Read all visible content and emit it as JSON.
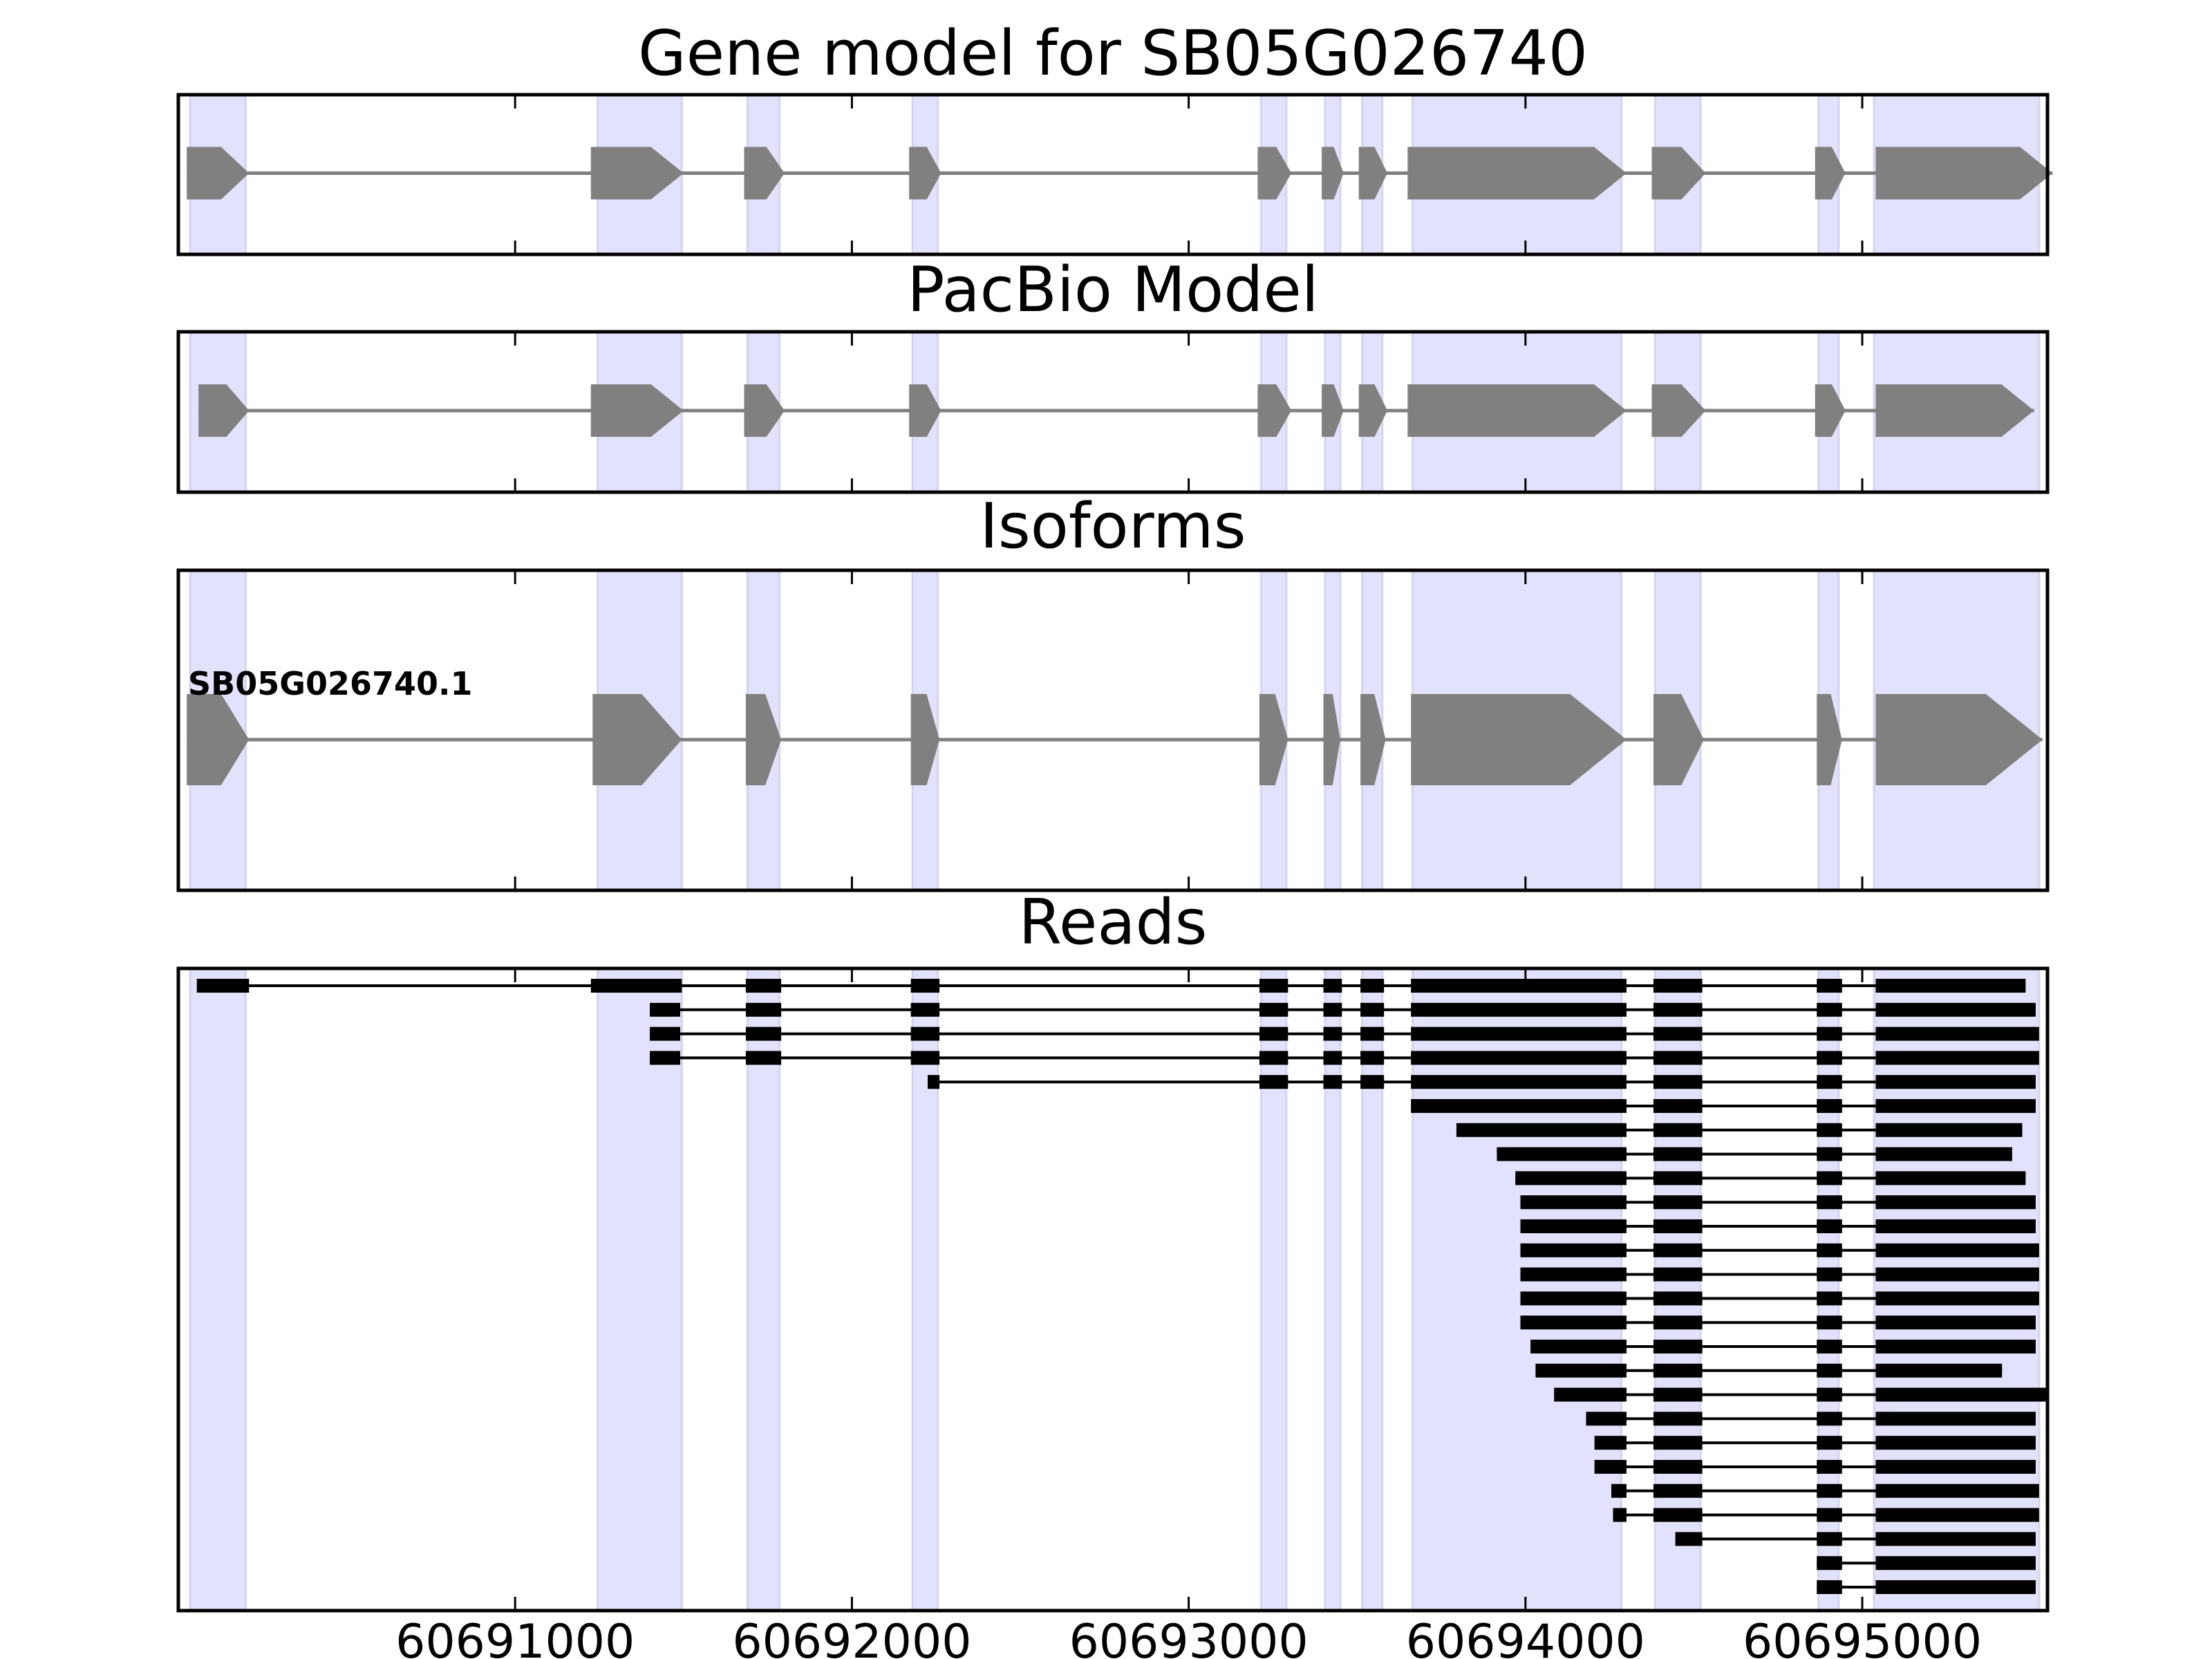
{
  "chart_data": {
    "type": "gene-model",
    "xlim": [
      60690000,
      60695550
    ],
    "x_ticks": [
      60691000,
      60692000,
      60693000,
      60694000,
      60695000
    ],
    "x_tick_labels": [
      "60691000",
      "60692000",
      "60693000",
      "60694000",
      "60695000"
    ],
    "colors": {
      "exon_model": "#808080",
      "intron_model": "#808080",
      "read": "#000000",
      "highlight": "#e2e2fc",
      "frame": "#000000"
    },
    "highlight_regions": [
      [
        60690035,
        60690200
      ],
      [
        60691245,
        60691495
      ],
      [
        60691690,
        60691785
      ],
      [
        60692180,
        60692255
      ],
      [
        60693215,
        60693290
      ],
      [
        60693405,
        60693450
      ],
      [
        60693515,
        60693575
      ],
      [
        60693665,
        60694285
      ],
      [
        60694385,
        60694520
      ],
      [
        60694870,
        60694930
      ],
      [
        60695035,
        60695525
      ]
    ],
    "panels": [
      {
        "title": "Gene model for SB05G026740",
        "transcripts": [
          {
            "label": "",
            "exons": [
              [
                60690025,
                60690210
              ],
              [
                60691225,
                60691500
              ],
              [
                60691680,
                60691800
              ],
              [
                60692170,
                60692265
              ],
              [
                60693205,
                60693305
              ],
              [
                60693395,
                60693460
              ],
              [
                60693505,
                60693590
              ],
              [
                60693650,
                60694300
              ],
              [
                60694375,
                60694535
              ],
              [
                60694860,
                60694950
              ],
              [
                60695040,
                60695565
              ]
            ]
          }
        ]
      },
      {
        "title": "PacBio Model",
        "transcripts": [
          {
            "label": "",
            "exons": [
              [
                60690060,
                60690210
              ],
              [
                60691225,
                60691500
              ],
              [
                60691680,
                60691800
              ],
              [
                60692170,
                60692265
              ],
              [
                60693205,
                60693305
              ],
              [
                60693395,
                60693460
              ],
              [
                60693505,
                60693590
              ],
              [
                60693650,
                60694300
              ],
              [
                60694375,
                60694535
              ],
              [
                60694860,
                60694950
              ],
              [
                60695040,
                60695510
              ]
            ]
          }
        ]
      },
      {
        "title": "Isoforms",
        "transcripts": [
          {
            "label": "SB05G026740.1",
            "exons": [
              [
                60690025,
                60690210
              ],
              [
                60691230,
                60691495
              ],
              [
                60691685,
                60691790
              ],
              [
                60692175,
                60692260
              ],
              [
                60693210,
                60693295
              ],
              [
                60693400,
                60693450
              ],
              [
                60693510,
                60693585
              ],
              [
                60693660,
                60694300
              ],
              [
                60694380,
                60694530
              ],
              [
                60694865,
                60694940
              ],
              [
                60695040,
                60695535
              ]
            ]
          }
        ]
      },
      {
        "title": "Reads",
        "reads": [
          [
            [
              60690055,
              60690210
            ],
            [
              60691225,
              60691495
            ],
            [
              60691685,
              60691790
            ],
            [
              60692175,
              60692260
            ],
            [
              60693210,
              60693295
            ],
            [
              60693400,
              60693455
            ],
            [
              60693510,
              60693580
            ],
            [
              60693660,
              60694300
            ],
            [
              60694380,
              60694525
            ],
            [
              60694865,
              60694940
            ],
            [
              60695040,
              60695485
            ]
          ],
          [
            [
              60691400,
              60691490
            ],
            [
              60691685,
              60691790
            ],
            [
              60692175,
              60692260
            ],
            [
              60693210,
              60693295
            ],
            [
              60693400,
              60693455
            ],
            [
              60693510,
              60693580
            ],
            [
              60693660,
              60694300
            ],
            [
              60694380,
              60694525
            ],
            [
              60694865,
              60694940
            ],
            [
              60695040,
              60695515
            ]
          ],
          [
            [
              60691400,
              60691490
            ],
            [
              60691685,
              60691790
            ],
            [
              60692175,
              60692260
            ],
            [
              60693210,
              60693295
            ],
            [
              60693400,
              60693455
            ],
            [
              60693510,
              60693580
            ],
            [
              60693660,
              60694300
            ],
            [
              60694380,
              60694525
            ],
            [
              60694865,
              60694940
            ],
            [
              60695040,
              60695525
            ]
          ],
          [
            [
              60691400,
              60691490
            ],
            [
              60691685,
              60691790
            ],
            [
              60692175,
              60692260
            ],
            [
              60693210,
              60693295
            ],
            [
              60693400,
              60693455
            ],
            [
              60693510,
              60693580
            ],
            [
              60693660,
              60694300
            ],
            [
              60694380,
              60694525
            ],
            [
              60694865,
              60694940
            ],
            [
              60695040,
              60695525
            ]
          ],
          [
            [
              60692225,
              60692260
            ],
            [
              60693210,
              60693295
            ],
            [
              60693400,
              60693455
            ],
            [
              60693510,
              60693580
            ],
            [
              60693660,
              60694300
            ],
            [
              60694380,
              60694525
            ],
            [
              60694865,
              60694940
            ],
            [
              60695040,
              60695515
            ]
          ],
          [
            [
              60693660,
              60694300
            ],
            [
              60694380,
              60694525
            ],
            [
              60694865,
              60694940
            ],
            [
              60695040,
              60695515
            ]
          ],
          [
            [
              60693795,
              60694300
            ],
            [
              60694380,
              60694525
            ],
            [
              60694865,
              60694940
            ],
            [
              60695040,
              60695475
            ]
          ],
          [
            [
              60693915,
              60694300
            ],
            [
              60694380,
              60694525
            ],
            [
              60694865,
              60694940
            ],
            [
              60695040,
              60695445
            ]
          ],
          [
            [
              60693970,
              60694300
            ],
            [
              60694380,
              60694525
            ],
            [
              60694865,
              60694940
            ],
            [
              60695040,
              60695485
            ]
          ],
          [
            [
              60693985,
              60694300
            ],
            [
              60694380,
              60694525
            ],
            [
              60694865,
              60694940
            ],
            [
              60695040,
              60695515
            ]
          ],
          [
            [
              60693985,
              60694300
            ],
            [
              60694380,
              60694525
            ],
            [
              60694865,
              60694940
            ],
            [
              60695040,
              60695515
            ]
          ],
          [
            [
              60693985,
              60694300
            ],
            [
              60694380,
              60694525
            ],
            [
              60694865,
              60694940
            ],
            [
              60695040,
              60695525
            ]
          ],
          [
            [
              60693985,
              60694300
            ],
            [
              60694380,
              60694525
            ],
            [
              60694865,
              60694940
            ],
            [
              60695040,
              60695525
            ]
          ],
          [
            [
              60693985,
              60694300
            ],
            [
              60694380,
              60694525
            ],
            [
              60694865,
              60694940
            ],
            [
              60695040,
              60695525
            ]
          ],
          [
            [
              60693985,
              60694300
            ],
            [
              60694380,
              60694525
            ],
            [
              60694865,
              60694940
            ],
            [
              60695040,
              60695515
            ]
          ],
          [
            [
              60694015,
              60694300
            ],
            [
              60694380,
              60694525
            ],
            [
              60694865,
              60694940
            ],
            [
              60695040,
              60695515
            ]
          ],
          [
            [
              60694030,
              60694300
            ],
            [
              60694380,
              60694525
            ],
            [
              60694865,
              60694940
            ],
            [
              60695040,
              60695415
            ]
          ],
          [
            [
              60694085,
              60694300
            ],
            [
              60694380,
              60694525
            ],
            [
              60694865,
              60694940
            ],
            [
              60695040,
              60695555
            ]
          ],
          [
            [
              60694180,
              60694300
            ],
            [
              60694380,
              60694525
            ],
            [
              60694865,
              60694940
            ],
            [
              60695040,
              60695515
            ]
          ],
          [
            [
              60694205,
              60694300
            ],
            [
              60694380,
              60694525
            ],
            [
              60694865,
              60694940
            ],
            [
              60695040,
              60695515
            ]
          ],
          [
            [
              60694205,
              60694300
            ],
            [
              60694380,
              60694525
            ],
            [
              60694865,
              60694940
            ],
            [
              60695040,
              60695515
            ]
          ],
          [
            [
              60694255,
              60694300
            ],
            [
              60694380,
              60694525
            ],
            [
              60694865,
              60694940
            ],
            [
              60695040,
              60695525
            ]
          ],
          [
            [
              60694260,
              60694300
            ],
            [
              60694380,
              60694525
            ],
            [
              60694865,
              60694940
            ],
            [
              60695040,
              60695525
            ]
          ],
          [
            [
              60694445,
              60694525
            ],
            [
              60694865,
              60694940
            ],
            [
              60695040,
              60695515
            ]
          ],
          [
            [
              60694865,
              60694940
            ],
            [
              60695040,
              60695515
            ]
          ],
          [
            [
              60694865,
              60694940
            ],
            [
              60695040,
              60695515
            ]
          ]
        ]
      }
    ]
  }
}
